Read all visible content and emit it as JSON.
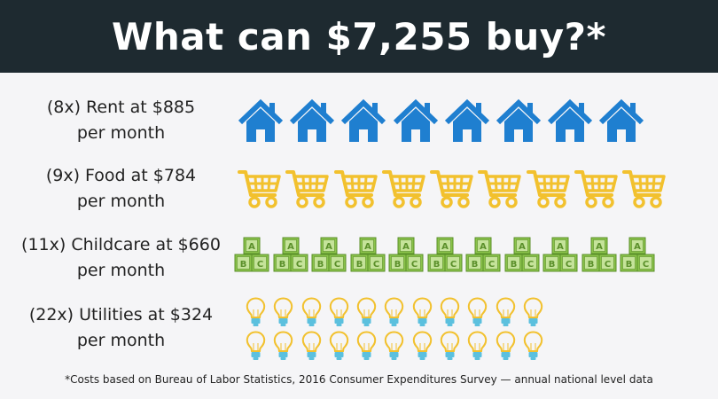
{
  "header": {
    "title": "What can $7,255 buy?*"
  },
  "rows": [
    {
      "line1": "(8x) Rent at $885",
      "line2": "per month",
      "count": 8,
      "icon": "house-icon",
      "color": "#1f7fd0"
    },
    {
      "line1": "(9x) Food at $784",
      "line2": "per month",
      "count": 9,
      "icon": "shopping-cart-icon",
      "color": "#f2c12e"
    },
    {
      "line1": "(11x) Childcare at $660",
      "line2": "per month",
      "count": 11,
      "icon": "abc-blocks-icon",
      "color": "#8bc34a"
    },
    {
      "line1": "(22x) Utilities at $324",
      "line2": "per month",
      "count": 22,
      "icon": "light-bulb-icon",
      "color": "#f2c12e"
    }
  ],
  "blocks": {
    "top": "A",
    "left": "B",
    "right": "C"
  },
  "footnote": "*Costs based on Bureau of Labor Statistics, 2016 Consumer Expenditures Survey — annual national level data"
}
